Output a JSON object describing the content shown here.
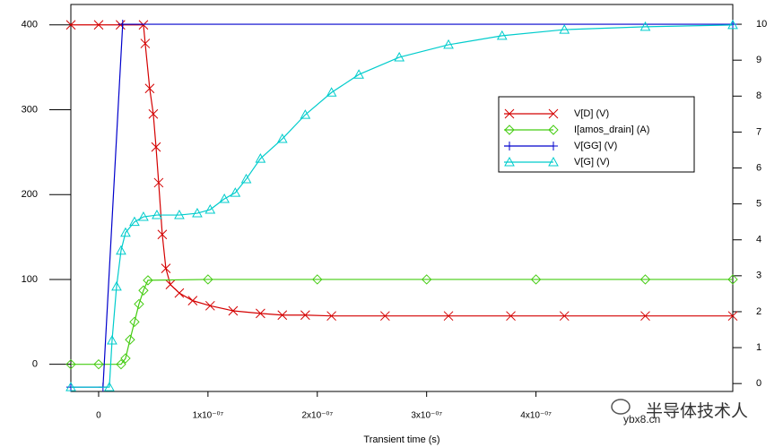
{
  "chart_data": {
    "type": "line",
    "xlabel": "Transient time (s)",
    "xlim": [
      -2.54e-08,
      5.8e-07
    ],
    "xticks": [
      0,
      {
        "value": 1e-07,
        "label": "1x10⁻⁰⁷"
      },
      {
        "value": 2e-07,
        "label": "2x10⁻⁰⁷"
      },
      {
        "value": 3e-07,
        "label": "3x10⁻⁰⁷"
      },
      {
        "value": 4e-07,
        "label": "4x10⁻⁰⁷"
      }
    ],
    "ylim": [
      -32,
      424
    ],
    "yticks": [
      0,
      100,
      200,
      300,
      400
    ],
    "y2lim": [
      -0.22,
      10.55
    ],
    "y2ticks": [
      0,
      1,
      2,
      3,
      4,
      5,
      6,
      7,
      8,
      9,
      10
    ],
    "legend": "upper right",
    "annotations": [
      "ybx8.cn",
      "半导体技术人"
    ],
    "series": [
      {
        "name": "V[D] (V)",
        "color": "#d40000",
        "marker": "x",
        "x": [
          -2.54e-08,
          0,
          2e-08,
          4.1e-08,
          4.26e-08,
          4.67e-08,
          5e-08,
          5.25e-08,
          5.49e-08,
          5.82e-08,
          6.15e-08,
          6.56e-08,
          7.38e-08,
          8.6e-08,
          1.02e-07,
          1.23e-07,
          1.48e-07,
          1.68e-07,
          1.89e-07,
          2.13e-07,
          2.62e-07,
          3.2e-07,
          3.77e-07,
          4.26e-07,
          5e-07,
          5.8e-07
        ],
        "values": [
          400,
          400,
          400,
          400,
          378,
          325,
          295,
          256,
          214,
          153,
          113,
          94,
          84,
          75,
          69,
          63,
          60,
          58,
          58,
          57,
          57,
          57,
          57,
          57,
          57,
          57
        ]
      },
      {
        "name": "I[amos_drain] (A)",
        "color": "#44cc11",
        "marker": "diamond",
        "x": [
          -2.54e-08,
          0,
          2.05e-08,
          2.46e-08,
          2.87e-08,
          3.28e-08,
          3.69e-08,
          4.1e-08,
          4.51e-08,
          1e-07,
          2e-07,
          3e-07,
          4e-07,
          5e-07,
          5.8e-07
        ],
        "values": [
          0,
          0,
          0,
          7,
          29,
          50,
          71,
          87,
          99,
          100,
          100,
          100,
          100,
          100,
          100
        ]
      },
      {
        "name": "V[GG] (V)",
        "color": "#0000cc",
        "marker": "plus",
        "axis": "y2",
        "x": [
          -2.54e-08,
          4e-09,
          2.2e-08,
          5.8e-07
        ],
        "values": [
          -0.1,
          -0.1,
          10,
          10
        ]
      },
      {
        "name": "V[G] (V)",
        "color": "#00cccc",
        "marker": "triangle",
        "axis": "y2",
        "x": [
          -2.54e-08,
          9.8e-09,
          1.23e-08,
          1.64e-08,
          2.05e-08,
          2.46e-08,
          3.28e-08,
          4.1e-08,
          5.33e-08,
          7.38e-08,
          9.02e-08,
          1.02e-07,
          1.15e-07,
          1.25e-07,
          1.35e-07,
          1.48e-07,
          1.68e-07,
          1.89e-07,
          2.13e-07,
          2.38e-07,
          2.75e-07,
          3.2e-07,
          3.69e-07,
          4.26e-07,
          5e-07,
          5.8e-07
        ],
        "values": [
          -0.1,
          -0.1,
          1.2,
          2.7,
          3.7,
          4.2,
          4.5,
          4.64,
          4.69,
          4.69,
          4.74,
          4.84,
          5.14,
          5.31,
          5.69,
          6.26,
          6.81,
          7.48,
          8.1,
          8.6,
          9.08,
          9.43,
          9.68,
          9.85,
          9.93,
          9.98
        ]
      }
    ]
  }
}
